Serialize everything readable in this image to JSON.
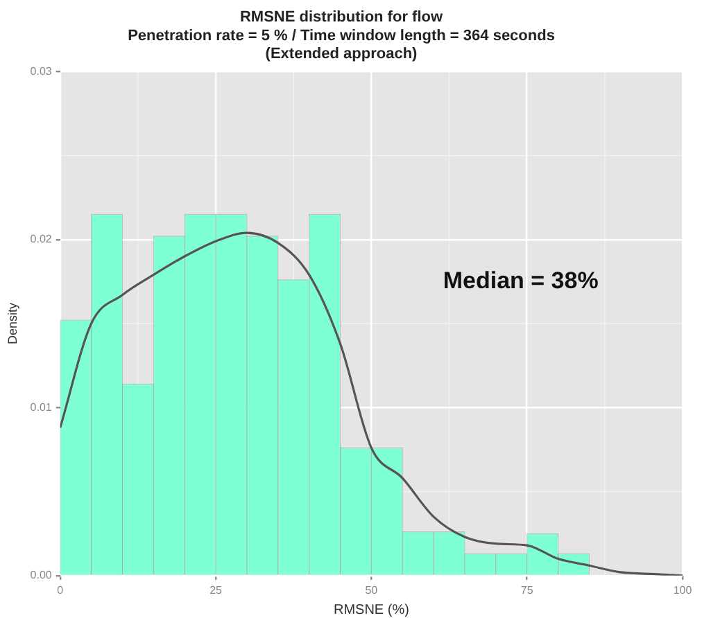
{
  "chart_data": {
    "type": "histogram",
    "title": "RMSNE distribution for flow",
    "subtitle": "Penetration rate = 5 % / Time window length = 364 seconds\n(Extended approach)",
    "xlabel": "RMSNE (%)",
    "ylabel": "Density",
    "bins": [
      0,
      5,
      10,
      15,
      20,
      25,
      30,
      35,
      40,
      45,
      50,
      55,
      60,
      65,
      70,
      75,
      80,
      85
    ],
    "series": [
      {
        "color": "#7fffd4",
        "values": [
          0.0152,
          0.0215,
          0.0114,
          0.0202,
          0.0215,
          0.0215,
          0.0202,
          0.0176,
          0.0215,
          0.0076,
          0.0076,
          0.0026,
          0.0026,
          0.0013,
          0.0013,
          0.0025,
          0.0013
        ]
      },
      {
        "type": "line",
        "color": "#555555",
        "x": [
          0,
          5,
          10,
          15,
          20,
          25,
          30,
          35,
          40,
          45,
          50,
          55,
          60,
          65,
          70,
          75,
          80,
          85,
          90,
          95,
          100
        ],
        "values": [
          0.0088,
          0.015,
          0.0167,
          0.0179,
          0.019,
          0.0199,
          0.0204,
          0.0198,
          0.0179,
          0.0138,
          0.0076,
          0.0058,
          0.0035,
          0.0023,
          0.0019,
          0.0018,
          0.001,
          0.0006,
          0.0002,
          0.0001,
          0
        ]
      }
    ],
    "xlim": [
      0,
      100
    ],
    "xticks": [
      0,
      25,
      50,
      75,
      100
    ],
    "ylim": [
      0,
      0.03
    ],
    "yticks": [
      {
        "value": 0,
        "label": "0.00"
      },
      {
        "value": 0.01,
        "label": "0.01"
      },
      {
        "value": 0.02,
        "label": "0.02"
      },
      {
        "value": 0.03,
        "label": "0.03"
      }
    ],
    "grid": true,
    "legend": false,
    "marker": "none",
    "line_style": "solid",
    "annotations": [
      "Median = 38%"
    ]
  }
}
